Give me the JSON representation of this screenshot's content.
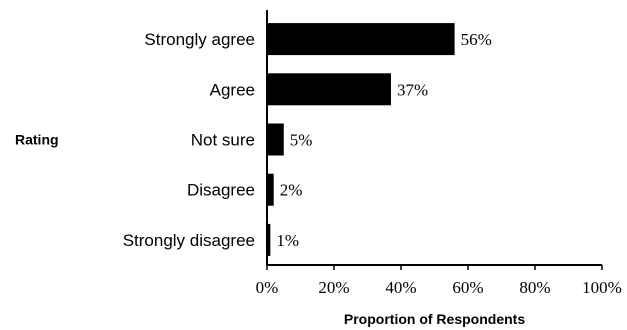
{
  "chart_data": {
    "type": "bar",
    "orientation": "horizontal",
    "categories": [
      "Strongly agree",
      "Agree",
      "Not sure",
      "Disagree",
      "Strongly disagree"
    ],
    "values": [
      56,
      37,
      5,
      2,
      1
    ],
    "data_labels": [
      "56%",
      "37%",
      "5%",
      "2%",
      "1%"
    ],
    "xlabel": "Proportion of Respondents",
    "ylabel": "Rating",
    "xlim": [
      0,
      100
    ],
    "x_ticks": [
      0,
      20,
      40,
      60,
      80,
      100
    ],
    "x_tick_labels": [
      "0%",
      "20%",
      "40%",
      "60%",
      "80%",
      "100%"
    ],
    "grid": false,
    "legend": "none",
    "bar_color": "#000000"
  }
}
